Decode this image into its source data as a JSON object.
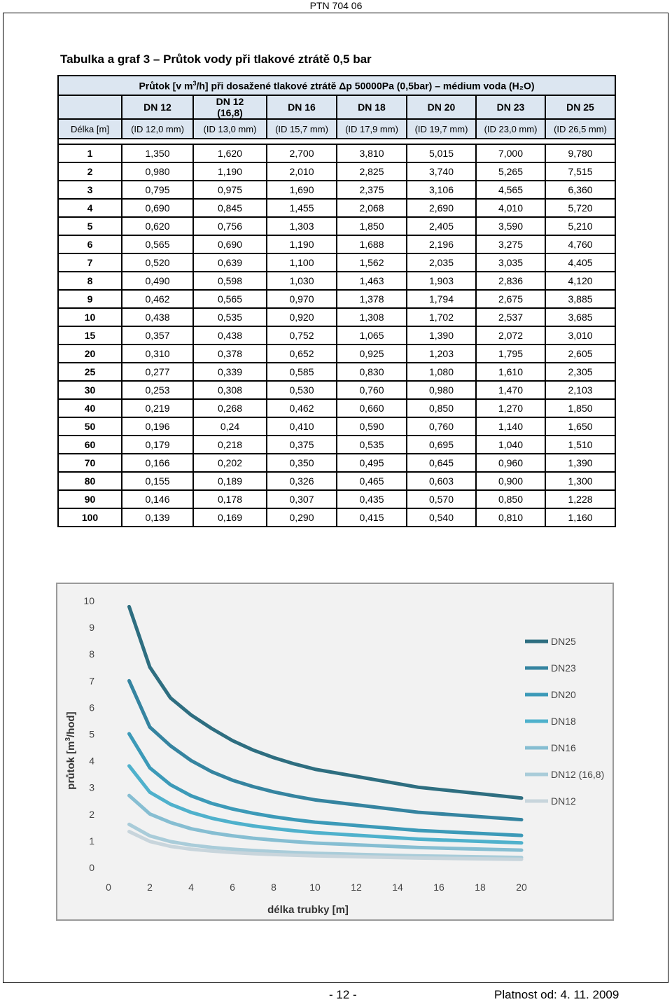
{
  "header": {
    "doc_code": "PTN 704 06"
  },
  "title": "Tabulka a graf 3 – Průtok vody při tlakové ztrátě 0,5 bar",
  "table": {
    "caption_pre": "Průtok [v m",
    "caption_sup": "3",
    "caption_post": "/h] při dosažené tlakové ztrátě Δp 50000Pa (0,5bar) – médium voda (H₂O)",
    "length_header": "Délka [m]",
    "columns": [
      {
        "dn": "DN 12",
        "id": "(ID 12,0 mm)"
      },
      {
        "dn": "DN 12",
        "dn2": "(16,8)",
        "id": "(ID 13,0 mm)"
      },
      {
        "dn": "DN 16",
        "id": "(ID 15,7 mm)"
      },
      {
        "dn": "DN 18",
        "id": "(ID 17,9 mm)"
      },
      {
        "dn": "DN 20",
        "id": "(ID 19,7 mm)"
      },
      {
        "dn": "DN 23",
        "id": "(ID 23,0 mm)"
      },
      {
        "dn": "DN 25",
        "id": "(ID 26,5 mm)"
      }
    ],
    "rows": [
      {
        "len": "1",
        "vals": [
          "1,350",
          "1,620",
          "2,700",
          "3,810",
          "5,015",
          "7,000",
          "9,780"
        ]
      },
      {
        "len": "2",
        "vals": [
          "0,980",
          "1,190",
          "2,010",
          "2,825",
          "3,740",
          "5,265",
          "7,515"
        ]
      },
      {
        "len": "3",
        "vals": [
          "0,795",
          "0,975",
          "1,690",
          "2,375",
          "3,106",
          "4,565",
          "6,360"
        ]
      },
      {
        "len": "4",
        "vals": [
          "0,690",
          "0,845",
          "1,455",
          "2,068",
          "2,690",
          "4,010",
          "5,720"
        ]
      },
      {
        "len": "5",
        "vals": [
          "0,620",
          "0,756",
          "1,303",
          "1,850",
          "2,405",
          "3,590",
          "5,210"
        ]
      },
      {
        "len": "6",
        "vals": [
          "0,565",
          "0,690",
          "1,190",
          "1,688",
          "2,196",
          "3,275",
          "4,760"
        ]
      },
      {
        "len": "7",
        "vals": [
          "0,520",
          "0,639",
          "1,100",
          "1,562",
          "2,035",
          "3,035",
          "4,405"
        ]
      },
      {
        "len": "8",
        "vals": [
          "0,490",
          "0,598",
          "1,030",
          "1,463",
          "1,903",
          "2,836",
          "4,120"
        ]
      },
      {
        "len": "9",
        "vals": [
          "0,462",
          "0,565",
          "0,970",
          "1,378",
          "1,794",
          "2,675",
          "3,885"
        ]
      },
      {
        "len": "10",
        "vals": [
          "0,438",
          "0,535",
          "0,920",
          "1,308",
          "1,702",
          "2,537",
          "3,685"
        ]
      },
      {
        "len": "15",
        "vals": [
          "0,357",
          "0,438",
          "0,752",
          "1,065",
          "1,390",
          "2,072",
          "3,010"
        ]
      },
      {
        "len": "20",
        "vals": [
          "0,310",
          "0,378",
          "0,652",
          "0,925",
          "1,203",
          "1,795",
          "2,605"
        ]
      },
      {
        "len": "25",
        "vals": [
          "0,277",
          "0,339",
          "0,585",
          "0,830",
          "1,080",
          "1,610",
          "2,305"
        ]
      },
      {
        "len": "30",
        "vals": [
          "0,253",
          "0,308",
          "0,530",
          "0,760",
          "0,980",
          "1,470",
          "2,103"
        ]
      },
      {
        "len": "40",
        "vals": [
          "0,219",
          "0,268",
          "0,462",
          "0,660",
          "0,850",
          "1,270",
          "1,850"
        ]
      },
      {
        "len": "50",
        "vals": [
          "0,196",
          "0,24",
          "0,410",
          "0,590",
          "0,760",
          "1,140",
          "1,650"
        ]
      },
      {
        "len": "60",
        "vals": [
          "0,179",
          "0,218",
          "0,375",
          "0,535",
          "0,695",
          "1,040",
          "1,510"
        ]
      },
      {
        "len": "70",
        "vals": [
          "0,166",
          "0,202",
          "0,350",
          "0,495",
          "0,645",
          "0,960",
          "1,390"
        ]
      },
      {
        "len": "80",
        "vals": [
          "0,155",
          "0,189",
          "0,326",
          "0,465",
          "0,603",
          "0,900",
          "1,300"
        ]
      },
      {
        "len": "90",
        "vals": [
          "0,146",
          "0,178",
          "0,307",
          "0,435",
          "0,570",
          "0,850",
          "1,228"
        ]
      },
      {
        "len": "100",
        "vals": [
          "0,139",
          "0,169",
          "0,290",
          "0,415",
          "0,540",
          "0,810",
          "1,160"
        ]
      }
    ]
  },
  "chart_data": {
    "type": "line",
    "title": "",
    "xlabel": "délka trubky [m]",
    "ylabel_pre": "průtok [m",
    "ylabel_sup": "3",
    "ylabel_post": "/hod]",
    "xlim": [
      0,
      20
    ],
    "ylim": [
      0,
      10
    ],
    "xticks": [
      0,
      2,
      4,
      6,
      8,
      10,
      12,
      14,
      16,
      18,
      20
    ],
    "yticks": [
      0,
      1,
      2,
      3,
      4,
      5,
      6,
      7,
      8,
      9,
      10
    ],
    "x": [
      1,
      2,
      3,
      4,
      5,
      6,
      7,
      8,
      9,
      10,
      15,
      20
    ],
    "legend_position": "right",
    "series": [
      {
        "name": "DN25",
        "color": "#2e6e80",
        "values": [
          9.78,
          7.515,
          6.36,
          5.72,
          5.21,
          4.76,
          4.405,
          4.12,
          3.885,
          3.685,
          3.01,
          2.605
        ]
      },
      {
        "name": "DN23",
        "color": "#3584a0",
        "values": [
          7.0,
          5.265,
          4.565,
          4.01,
          3.59,
          3.275,
          3.035,
          2.836,
          2.675,
          2.537,
          2.072,
          1.795
        ]
      },
      {
        "name": "DN20",
        "color": "#3c9ab8",
        "values": [
          5.015,
          3.74,
          3.106,
          2.69,
          2.405,
          2.196,
          2.035,
          1.903,
          1.794,
          1.702,
          1.39,
          1.203
        ]
      },
      {
        "name": "DN18",
        "color": "#4fb1cc",
        "values": [
          3.81,
          2.825,
          2.375,
          2.068,
          1.85,
          1.688,
          1.562,
          1.463,
          1.378,
          1.308,
          1.065,
          0.925
        ]
      },
      {
        "name": "DN16",
        "color": "#86bed2",
        "values": [
          2.7,
          2.01,
          1.69,
          1.455,
          1.303,
          1.19,
          1.1,
          1.03,
          0.97,
          0.92,
          0.752,
          0.652
        ]
      },
      {
        "name": "DN12 (16,8)",
        "color": "#a9ccd9",
        "values": [
          1.62,
          1.19,
          0.975,
          0.845,
          0.756,
          0.69,
          0.639,
          0.598,
          0.565,
          0.535,
          0.438,
          0.378
        ]
      },
      {
        "name": "DN12",
        "color": "#c8d5dc",
        "values": [
          1.35,
          0.98,
          0.795,
          0.69,
          0.62,
          0.565,
          0.52,
          0.49,
          0.462,
          0.438,
          0.357,
          0.31
        ]
      }
    ]
  },
  "footer": {
    "page": "- 12 -",
    "valid": "Platnost od: 4. 11. 2009"
  }
}
